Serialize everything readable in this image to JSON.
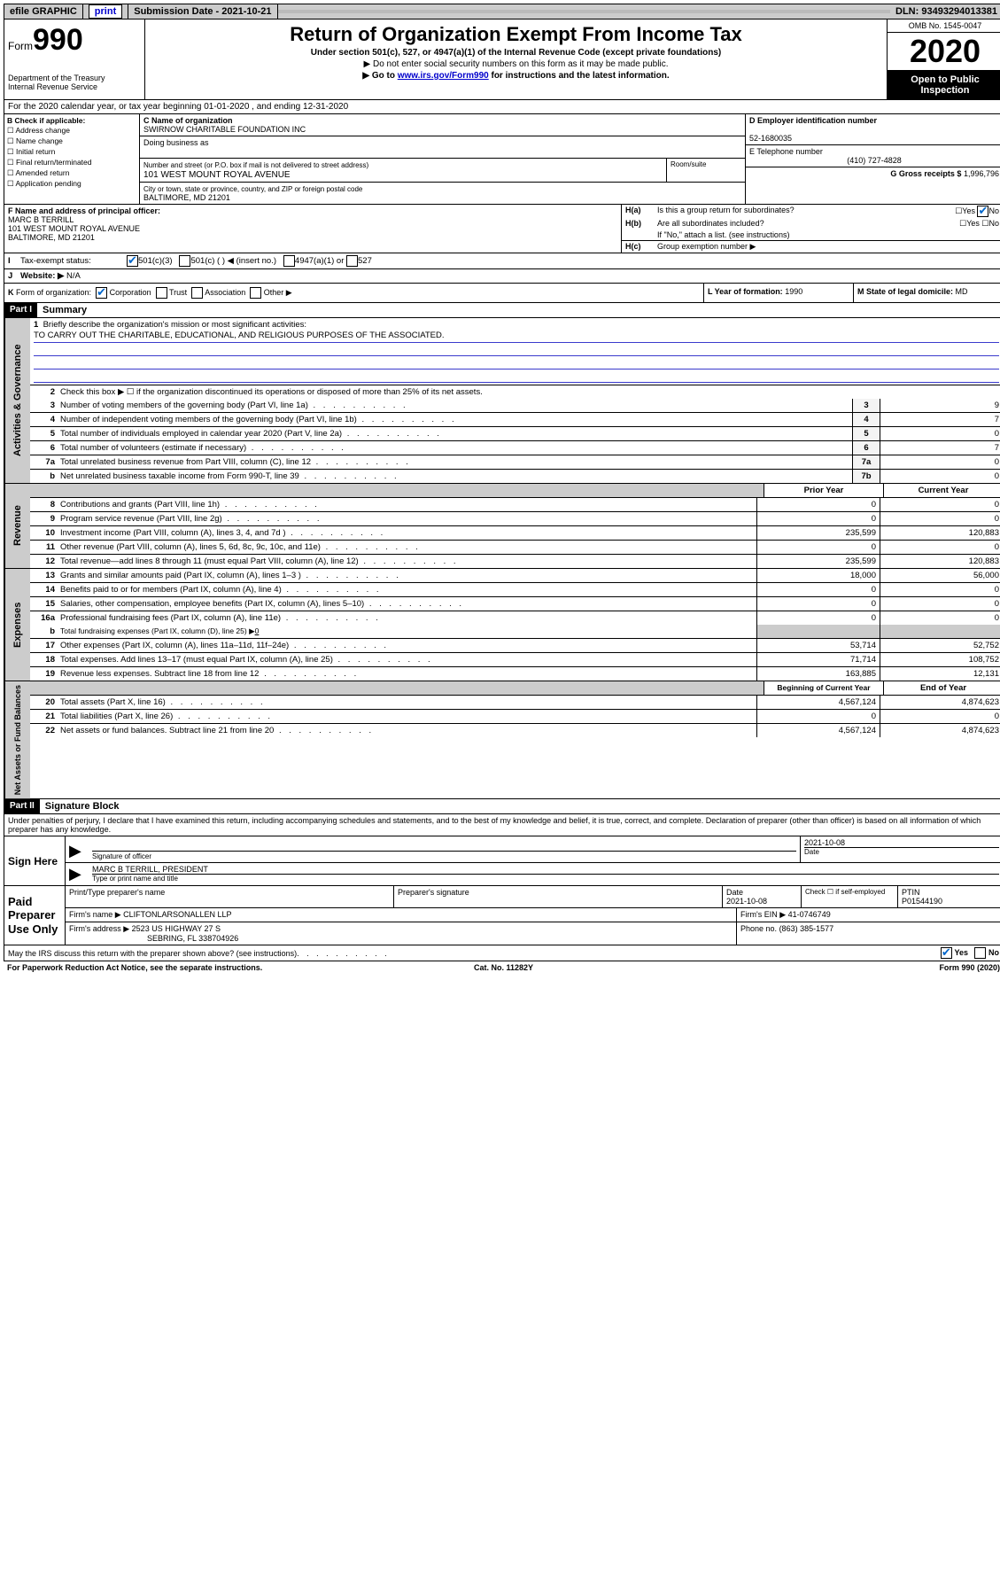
{
  "top_bar": {
    "efile_label": "efile GRAPHIC",
    "print_btn": "print",
    "submission_label": "Submission Date - 2021-10-21",
    "dln_label": "DLN: 93493294013381"
  },
  "header": {
    "form_prefix": "Form",
    "form_number": "990",
    "dept": "Department of the Treasury",
    "irs": "Internal Revenue Service",
    "title": "Return of Organization Exempt From Income Tax",
    "subtitle1": "Under section 501(c), 527, or 4947(a)(1) of the Internal Revenue Code (except private foundations)",
    "subtitle2": "▶ Do not enter social security numbers on this form as it may be made public.",
    "subtitle3_pre": "▶ Go to ",
    "subtitle3_link": "www.irs.gov/Form990",
    "subtitle3_post": " for instructions and the latest information.",
    "omb": "OMB No. 1545-0047",
    "year": "2020",
    "open_public": "Open to Public Inspection"
  },
  "row_A": {
    "lead": "A",
    "text": "For the 2020 calendar year, or tax year beginning 01-01-2020    , and ending 12-31-2020"
  },
  "box_B": {
    "title": "B Check if applicable:",
    "opts": [
      "Address change",
      "Name change",
      "Initial return",
      "Final return/terminated",
      "Amended return",
      "Application pending"
    ]
  },
  "box_C": {
    "name_lbl": "C Name of organization",
    "name_val": "SWIRNOW CHARITABLE FOUNDATION INC",
    "dba_lbl": "Doing business as",
    "dba_val": "",
    "addr_lbl": "Number and street (or P.O. box if mail is not delivered to street address)",
    "suite_lbl": "Room/suite",
    "addr_val": "101 WEST MOUNT ROYAL AVENUE",
    "city_lbl": "City or town, state or province, country, and ZIP or foreign postal code",
    "city_val": "BALTIMORE, MD  21201"
  },
  "box_D": {
    "lbl": "D Employer identification number",
    "val": "52-1680035"
  },
  "box_E": {
    "lbl": "E Telephone number",
    "val": "(410) 727-4828"
  },
  "box_G": {
    "lbl": "G Gross receipts $",
    "val": "1,996,796"
  },
  "box_F": {
    "lbl": "F  Name and address of principal officer:",
    "name": "MARC B TERRILL",
    "addr1": "101 WEST MOUNT ROYAL AVENUE",
    "addr2": "BALTIMORE, MD  21201"
  },
  "box_H": {
    "a_lbl": "H(a)",
    "a_txt": "Is this a group return for subordinates?",
    "a_yes": "Yes",
    "a_no": "No",
    "b_lbl": "H(b)",
    "b_txt": "Are all subordinates included?",
    "b_yes": "Yes",
    "b_no": "No",
    "b_note": "If \"No,\" attach a list. (see instructions)",
    "c_lbl": "H(c)",
    "c_txt": "Group exemption number ▶"
  },
  "row_I": {
    "lead": "I",
    "label": "Tax-exempt status:",
    "opt1": "501(c)(3)",
    "opt2": "501(c) (   ) ◀ (insert no.)",
    "opt3": "4947(a)(1) or",
    "opt4": "527"
  },
  "row_J": {
    "lead": "J",
    "label": "Website: ▶",
    "val": "N/A"
  },
  "row_K": {
    "lead": "K",
    "label": "Form of organization:",
    "o1": "Corporation",
    "o2": "Trust",
    "o3": "Association",
    "o4": "Other ▶"
  },
  "row_L": {
    "lbl": "L Year of formation:",
    "val": "1990"
  },
  "row_M": {
    "lbl": "M State of legal domicile:",
    "val": "MD"
  },
  "part1": {
    "hdr": "Part I",
    "title": "Summary"
  },
  "mission": {
    "lbl": "Briefly describe the organization's mission or most significant activities:",
    "text": "TO CARRY OUT THE CHARITABLE, EDUCATIONAL, AND RELIGIOUS PURPOSES OF THE ASSOCIATED."
  },
  "line2": "Check this box ▶ ☐  if the organization discontinued its operations or disposed of more than 25% of its net assets.",
  "gov_lines": [
    {
      "n": "3",
      "d": "Number of voting members of the governing body (Part VI, line 1a)",
      "b": "3",
      "v": "9"
    },
    {
      "n": "4",
      "d": "Number of independent voting members of the governing body (Part VI, line 1b)",
      "b": "4",
      "v": "7"
    },
    {
      "n": "5",
      "d": "Total number of individuals employed in calendar year 2020 (Part V, line 2a)",
      "b": "5",
      "v": "0"
    },
    {
      "n": "6",
      "d": "Total number of volunteers (estimate if necessary)",
      "b": "6",
      "v": "7"
    },
    {
      "n": "7a",
      "d": "Total unrelated business revenue from Part VIII, column (C), line 12",
      "b": "7a",
      "v": "0"
    },
    {
      "n": "b",
      "d": "Net unrelated business taxable income from Form 990-T, line 39",
      "b": "7b",
      "v": "0"
    }
  ],
  "rev_hdr": {
    "prior": "Prior Year",
    "current": "Current Year"
  },
  "rev_lines": [
    {
      "n": "8",
      "d": "Contributions and grants (Part VIII, line 1h)",
      "p": "0",
      "c": "0"
    },
    {
      "n": "9",
      "d": "Program service revenue (Part VIII, line 2g)",
      "p": "0",
      "c": "0"
    },
    {
      "n": "10",
      "d": "Investment income (Part VIII, column (A), lines 3, 4, and 7d )",
      "p": "235,599",
      "c": "120,883"
    },
    {
      "n": "11",
      "d": "Other revenue (Part VIII, column (A), lines 5, 6d, 8c, 9c, 10c, and 11e)",
      "p": "0",
      "c": "0"
    },
    {
      "n": "12",
      "d": "Total revenue—add lines 8 through 11 (must equal Part VIII, column (A), line 12)",
      "p": "235,599",
      "c": "120,883"
    }
  ],
  "exp_lines": [
    {
      "n": "13",
      "d": "Grants and similar amounts paid (Part IX, column (A), lines 1–3 )",
      "p": "18,000",
      "c": "56,000"
    },
    {
      "n": "14",
      "d": "Benefits paid to or for members (Part IX, column (A), line 4)",
      "p": "0",
      "c": "0"
    },
    {
      "n": "15",
      "d": "Salaries, other compensation, employee benefits (Part IX, column (A), lines 5–10)",
      "p": "0",
      "c": "0"
    },
    {
      "n": "16a",
      "d": "Professional fundraising fees (Part IX, column (A), line 11e)",
      "p": "0",
      "c": "0"
    }
  ],
  "exp_16b": {
    "n": "b",
    "d": "Total fundraising expenses (Part IX, column (D), line 25) ▶",
    "v": "0"
  },
  "exp_lines2": [
    {
      "n": "17",
      "d": "Other expenses (Part IX, column (A), lines 11a–11d, 11f–24e)",
      "p": "53,714",
      "c": "52,752"
    },
    {
      "n": "18",
      "d": "Total expenses. Add lines 13–17 (must equal Part IX, column (A), line 25)",
      "p": "71,714",
      "c": "108,752"
    },
    {
      "n": "19",
      "d": "Revenue less expenses. Subtract line 18 from line 12",
      "p": "163,885",
      "c": "12,131"
    }
  ],
  "na_hdr": {
    "prior": "Beginning of Current Year",
    "current": "End of Year"
  },
  "na_lines": [
    {
      "n": "20",
      "d": "Total assets (Part X, line 16)",
      "p": "4,567,124",
      "c": "4,874,623"
    },
    {
      "n": "21",
      "d": "Total liabilities (Part X, line 26)",
      "p": "0",
      "c": "0"
    },
    {
      "n": "22",
      "d": "Net assets or fund balances. Subtract line 21 from line 20",
      "p": "4,567,124",
      "c": "4,874,623"
    }
  ],
  "vert_labels": {
    "gov": "Activities & Governance",
    "rev": "Revenue",
    "exp": "Expenses",
    "na": "Net Assets or Fund Balances"
  },
  "part2": {
    "hdr": "Part II",
    "title": "Signature Block"
  },
  "perjury": "Under penalties of perjury, I declare that I have examined this return, including accompanying schedules and statements, and to the best of my knowledge and belief, it is true, correct, and complete. Declaration of preparer (other than officer) is based on all information of which preparer has any knowledge.",
  "sign_here": "Sign Here",
  "sig_officer_lbl": "Signature of officer",
  "sig_date_lbl": "Date",
  "sig_date_val": "2021-10-08",
  "sig_name_lbl": "Type or print name and title",
  "sig_name_val": "MARC B TERRILL, PRESIDENT",
  "paid_prep": "Paid Preparer Use Only",
  "prep": {
    "name_lbl": "Print/Type preparer's name",
    "sig_lbl": "Preparer's signature",
    "date_lbl": "Date",
    "date_val": "2021-10-08",
    "self_lbl": "Check ☐ if self-employed",
    "ptin_lbl": "PTIN",
    "ptin_val": "P01544190",
    "firm_name_lbl": "Firm's name    ▶",
    "firm_name_val": "CLIFTONLARSONALLEN LLP",
    "firm_ein_lbl": "Firm's EIN ▶",
    "firm_ein_val": "41-0746749",
    "firm_addr_lbl": "Firm's address ▶",
    "firm_addr_val1": "2523 US HIGHWAY 27 S",
    "firm_addr_val2": "SEBRING, FL  338704926",
    "phone_lbl": "Phone no.",
    "phone_val": "(863) 385-1577"
  },
  "discuss": {
    "q": "May the IRS discuss this return with the preparer shown above? (see instructions)",
    "yes": "Yes",
    "no": "No"
  },
  "footer": {
    "pra": "For Paperwork Reduction Act Notice, see the separate instructions.",
    "cat": "Cat. No. 11282Y",
    "form": "Form 990 (2020)"
  }
}
